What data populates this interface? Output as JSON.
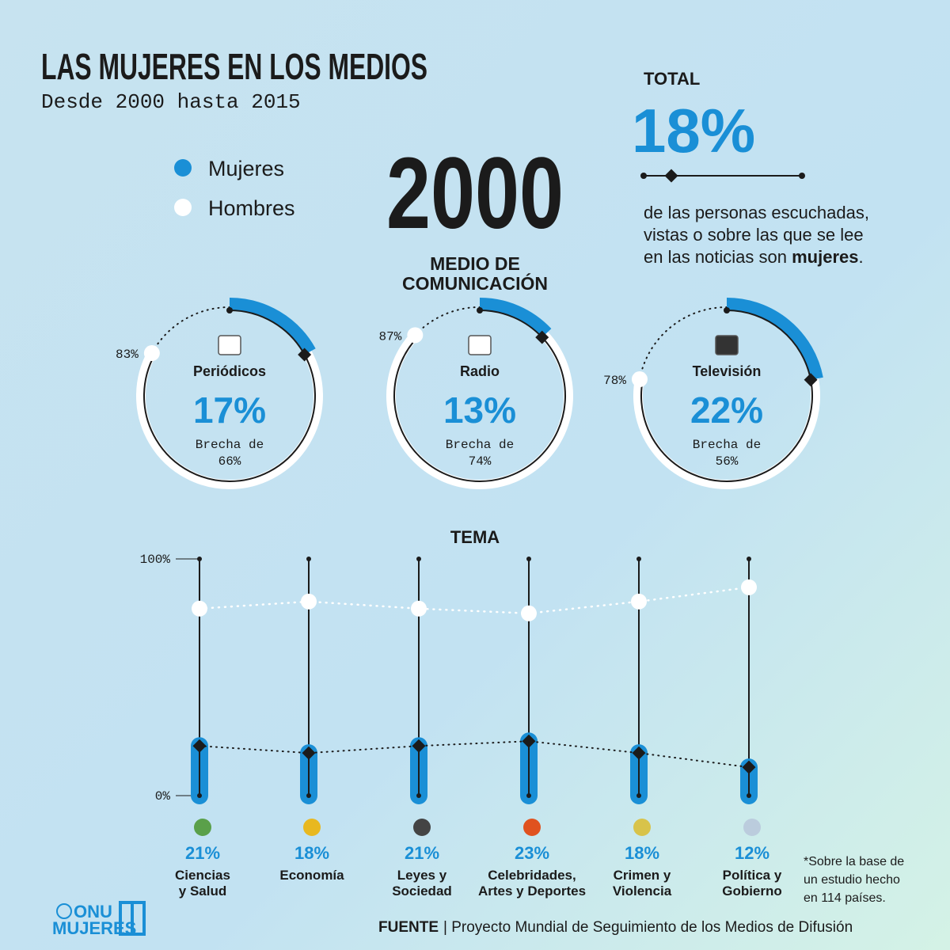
{
  "header": {
    "title": "LAS MUJERES EN LOS MEDIOS",
    "subtitle": "Desde 2000 hasta 2015"
  },
  "legend": [
    {
      "name": "Mujeres",
      "color": "#1a8fd6"
    },
    {
      "name": "Hombres",
      "color": "#ffffff"
    }
  ],
  "year": 2000,
  "total": {
    "label": "TOTAL",
    "value_label": "18%",
    "lines": [
      "de las personas escuchadas,",
      "vistas o sobre las que se lee",
      "en las noticias son "
    ],
    "bold": "mujeres",
    "end": "."
  },
  "media": {
    "title": [
      "MEDIO DE",
      "COMUNICACIÓN"
    ],
    "items": [
      {
        "name": "Periódicos",
        "women": 17,
        "women_label": "17%",
        "men": 83,
        "men_label": "83%",
        "gap_text": "Brecha de",
        "gap": "66%"
      },
      {
        "name": "Radio",
        "women": 13,
        "women_label": "13%",
        "men": 87,
        "men_label": "87%",
        "gap_text": "Brecha de",
        "gap": "74%"
      },
      {
        "name": "Televisión",
        "women": 22,
        "women_label": "22%",
        "men": 78,
        "men_label": "78%",
        "gap_text": "Brecha de",
        "gap": "56%"
      }
    ]
  },
  "topics": {
    "title": "TEMA",
    "ylim": [
      0,
      100
    ],
    "yticks": [
      {
        "value": 0,
        "label": "0%"
      },
      {
        "value": 100,
        "label": "100%"
      }
    ],
    "items": [
      {
        "name": [
          "Ciencias",
          "y Salud"
        ],
        "women": 21,
        "women_label": "21%",
        "men": 79
      },
      {
        "name": [
          "Economía"
        ],
        "women": 18,
        "women_label": "18%",
        "men": 82
      },
      {
        "name": [
          "Leyes y",
          "Sociedad"
        ],
        "women": 21,
        "women_label": "21%",
        "men": 79
      },
      {
        "name": [
          "Celebridades,",
          "Artes y Deportes"
        ],
        "women": 23,
        "women_label": "23%",
        "men": 77
      },
      {
        "name": [
          "Crimen y",
          "Violencia"
        ],
        "women": 18,
        "women_label": "18%",
        "men": 82
      },
      {
        "name": [
          "Política y",
          "Gobierno"
        ],
        "women": 12,
        "women_label": "12%",
        "men": 88
      }
    ]
  },
  "footnote": [
    "*Sobre la base de",
    "un estudio hecho",
    "en 114 países."
  ],
  "source": {
    "label": "FUENTE",
    "text": "| Proyecto Mundial de Seguimiento de los Medios de Difusión"
  },
  "logo": [
    "ONU",
    "MUJERES"
  ]
}
